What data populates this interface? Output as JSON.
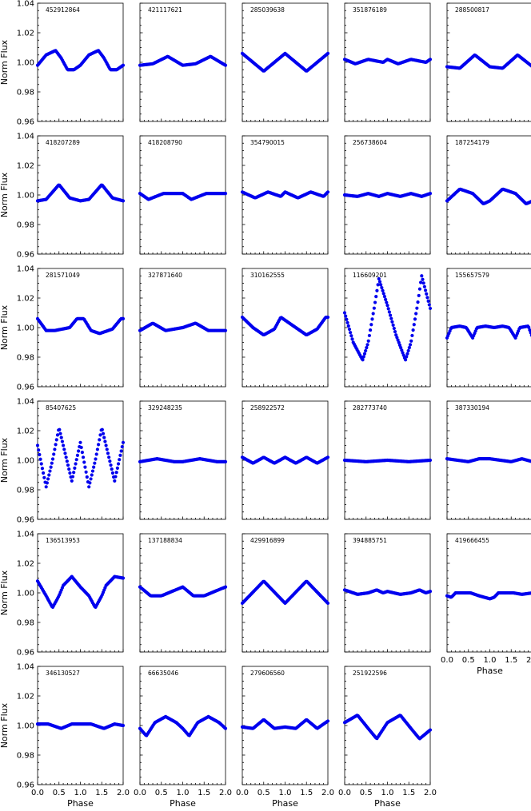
{
  "chart_data": {
    "type": "scatter",
    "xlabel": "Phase",
    "ylabel": "Norm Flux",
    "xlim": [
      0.0,
      2.0
    ],
    "ylim": [
      0.96,
      1.04
    ],
    "x_ticks": [
      "0.0",
      "0.5",
      "1.0",
      "1.5",
      "2.0"
    ],
    "y_ticks": [
      "0.96",
      "0.98",
      "1.00",
      "1.02",
      "1.04"
    ],
    "grid": false,
    "marker_color": "#0000ee",
    "panels": [
      {
        "id": "452912864",
        "curve": [
          [
            0.0,
            0.998
          ],
          [
            0.2,
            1.005
          ],
          [
            0.42,
            1.008
          ],
          [
            0.55,
            1.003
          ],
          [
            0.7,
            0.995
          ],
          [
            0.85,
            0.995
          ],
          [
            1.0,
            0.998
          ],
          [
            1.2,
            1.005
          ],
          [
            1.42,
            1.008
          ],
          [
            1.55,
            1.003
          ],
          [
            1.7,
            0.995
          ],
          [
            1.85,
            0.995
          ],
          [
            2.0,
            0.998
          ]
        ]
      },
      {
        "id": "421117621",
        "curve": [
          [
            0.0,
            0.998
          ],
          [
            0.3,
            0.999
          ],
          [
            0.65,
            1.004
          ],
          [
            1.0,
            0.998
          ],
          [
            1.3,
            0.999
          ],
          [
            1.65,
            1.004
          ],
          [
            2.0,
            0.998
          ]
        ]
      },
      {
        "id": "285039638",
        "curve": [
          [
            0.0,
            1.006
          ],
          [
            0.5,
            0.994
          ],
          [
            1.0,
            1.006
          ],
          [
            1.5,
            0.994
          ],
          [
            2.0,
            1.006
          ]
        ]
      },
      {
        "id": "351876189",
        "curve": [
          [
            0.0,
            1.002
          ],
          [
            0.25,
            0.999
          ],
          [
            0.55,
            1.002
          ],
          [
            0.9,
            1.0
          ],
          [
            1.0,
            1.002
          ],
          [
            1.25,
            0.999
          ],
          [
            1.55,
            1.002
          ],
          [
            1.9,
            1.0
          ],
          [
            2.0,
            1.002
          ]
        ]
      },
      {
        "id": "288500817",
        "curve": [
          [
            0.0,
            0.997
          ],
          [
            0.3,
            0.996
          ],
          [
            0.65,
            1.005
          ],
          [
            1.0,
            0.997
          ],
          [
            1.3,
            0.996
          ],
          [
            1.65,
            1.005
          ],
          [
            2.0,
            0.997
          ]
        ]
      },
      {
        "id": "418207289",
        "curve": [
          [
            0.0,
            0.996
          ],
          [
            0.2,
            0.997
          ],
          [
            0.5,
            1.007
          ],
          [
            0.75,
            0.998
          ],
          [
            1.0,
            0.996
          ],
          [
            1.2,
            0.997
          ],
          [
            1.5,
            1.007
          ],
          [
            1.75,
            0.998
          ],
          [
            2.0,
            0.996
          ]
        ]
      },
      {
        "id": "418208790",
        "curve": [
          [
            0.0,
            1.001
          ],
          [
            0.2,
            0.997
          ],
          [
            0.55,
            1.001
          ],
          [
            1.0,
            1.001
          ],
          [
            1.2,
            0.997
          ],
          [
            1.55,
            1.001
          ],
          [
            2.0,
            1.001
          ]
        ]
      },
      {
        "id": "354790015",
        "curve": [
          [
            0.0,
            1.002
          ],
          [
            0.3,
            0.998
          ],
          [
            0.6,
            1.002
          ],
          [
            0.9,
            0.999
          ],
          [
            1.0,
            1.002
          ],
          [
            1.3,
            0.998
          ],
          [
            1.6,
            1.002
          ],
          [
            1.9,
            0.999
          ],
          [
            2.0,
            1.002
          ]
        ]
      },
      {
        "id": "256738604",
        "curve": [
          [
            0.0,
            1.0
          ],
          [
            0.3,
            0.999
          ],
          [
            0.55,
            1.001
          ],
          [
            0.8,
            0.999
          ],
          [
            1.0,
            1.001
          ],
          [
            1.3,
            0.999
          ],
          [
            1.55,
            1.001
          ],
          [
            1.8,
            0.999
          ],
          [
            2.0,
            1.001
          ]
        ]
      },
      {
        "id": "187254179",
        "curve": [
          [
            0.0,
            0.996
          ],
          [
            0.3,
            1.004
          ],
          [
            0.6,
            1.001
          ],
          [
            0.85,
            0.994
          ],
          [
            1.0,
            0.996
          ],
          [
            1.3,
            1.004
          ],
          [
            1.6,
            1.001
          ],
          [
            1.85,
            0.994
          ],
          [
            2.0,
            0.996
          ]
        ]
      },
      {
        "id": "281571049",
        "curve": [
          [
            0.0,
            1.006
          ],
          [
            0.2,
            0.998
          ],
          [
            0.4,
            0.998
          ],
          [
            0.75,
            1.0
          ],
          [
            0.92,
            1.006
          ],
          [
            1.08,
            1.006
          ],
          [
            1.25,
            0.998
          ],
          [
            1.45,
            0.996
          ],
          [
            1.75,
            0.999
          ],
          [
            1.95,
            1.006
          ],
          [
            2.0,
            1.006
          ]
        ]
      },
      {
        "id": "327871640",
        "curve": [
          [
            0.0,
            0.998
          ],
          [
            0.3,
            1.003
          ],
          [
            0.6,
            0.998
          ],
          [
            1.0,
            1.0
          ],
          [
            1.3,
            1.003
          ],
          [
            1.6,
            0.998
          ],
          [
            2.0,
            0.998
          ]
        ]
      },
      {
        "id": "310162555",
        "curve": [
          [
            0.0,
            1.007
          ],
          [
            0.25,
            1.0
          ],
          [
            0.5,
            0.995
          ],
          [
            0.75,
            0.999
          ],
          [
            0.9,
            1.007
          ],
          [
            1.25,
            1.0
          ],
          [
            1.5,
            0.995
          ],
          [
            1.75,
            0.999
          ],
          [
            1.95,
            1.007
          ],
          [
            2.0,
            1.007
          ]
        ]
      },
      {
        "id": "116609201",
        "curve": [
          [
            0.0,
            1.01
          ],
          [
            0.2,
            0.99
          ],
          [
            0.42,
            0.978
          ],
          [
            0.55,
            0.99
          ],
          [
            0.7,
            1.015
          ],
          [
            0.8,
            1.033
          ],
          [
            1.0,
            1.015
          ],
          [
            1.2,
            0.995
          ],
          [
            1.42,
            0.978
          ],
          [
            1.55,
            0.99
          ],
          [
            1.7,
            1.015
          ],
          [
            1.8,
            1.035
          ],
          [
            2.0,
            1.013
          ]
        ]
      },
      {
        "id": "155657579",
        "curve": [
          [
            0.0,
            0.993
          ],
          [
            0.1,
            1.0
          ],
          [
            0.3,
            1.001
          ],
          [
            0.45,
            1.0
          ],
          [
            0.6,
            0.993
          ],
          [
            0.7,
            1.0
          ],
          [
            0.9,
            1.001
          ],
          [
            1.1,
            1.0
          ],
          [
            1.3,
            1.001
          ],
          [
            1.45,
            1.0
          ],
          [
            1.6,
            0.993
          ],
          [
            1.7,
            1.0
          ],
          [
            1.9,
            1.001
          ],
          [
            2.0,
            0.993
          ]
        ]
      },
      {
        "id": "85407625",
        "curve": [
          [
            0.0,
            1.01
          ],
          [
            0.2,
            0.982
          ],
          [
            0.35,
            1.0
          ],
          [
            0.5,
            1.022
          ],
          [
            0.7,
            0.998
          ],
          [
            0.8,
            0.986
          ],
          [
            1.0,
            1.012
          ],
          [
            1.2,
            0.982
          ],
          [
            1.35,
            1.0
          ],
          [
            1.5,
            1.022
          ],
          [
            1.7,
            0.998
          ],
          [
            1.8,
            0.986
          ],
          [
            2.0,
            1.012
          ]
        ]
      },
      {
        "id": "329248235",
        "curve": [
          [
            0.0,
            0.999
          ],
          [
            0.4,
            1.001
          ],
          [
            0.8,
            0.999
          ],
          [
            1.0,
            0.999
          ],
          [
            1.4,
            1.001
          ],
          [
            1.8,
            0.999
          ],
          [
            2.0,
            0.999
          ]
        ]
      },
      {
        "id": "258922572",
        "curve": [
          [
            0.0,
            1.002
          ],
          [
            0.25,
            0.998
          ],
          [
            0.5,
            1.002
          ],
          [
            0.75,
            0.998
          ],
          [
            1.0,
            1.002
          ],
          [
            1.25,
            0.998
          ],
          [
            1.5,
            1.002
          ],
          [
            1.75,
            0.998
          ],
          [
            2.0,
            1.002
          ]
        ]
      },
      {
        "id": "282773740",
        "curve": [
          [
            0.0,
            1.0
          ],
          [
            0.5,
            0.999
          ],
          [
            1.0,
            1.0
          ],
          [
            1.5,
            0.999
          ],
          [
            2.0,
            1.0
          ]
        ]
      },
      {
        "id": "387330194",
        "curve": [
          [
            0.0,
            1.001
          ],
          [
            0.5,
            0.999
          ],
          [
            0.75,
            1.001
          ],
          [
            1.0,
            1.001
          ],
          [
            1.5,
            0.999
          ],
          [
            1.75,
            1.001
          ],
          [
            2.0,
            0.999
          ]
        ]
      },
      {
        "id": "136513953",
        "curve": [
          [
            0.0,
            1.008
          ],
          [
            0.2,
            0.998
          ],
          [
            0.35,
            0.99
          ],
          [
            0.5,
            0.998
          ],
          [
            0.6,
            1.005
          ],
          [
            0.8,
            1.011
          ],
          [
            1.0,
            1.004
          ],
          [
            1.2,
            0.998
          ],
          [
            1.35,
            0.99
          ],
          [
            1.5,
            0.998
          ],
          [
            1.6,
            1.005
          ],
          [
            1.8,
            1.011
          ],
          [
            2.0,
            1.01
          ]
        ]
      },
      {
        "id": "137188834",
        "curve": [
          [
            0.0,
            1.004
          ],
          [
            0.25,
            0.998
          ],
          [
            0.5,
            0.998
          ],
          [
            0.75,
            1.001
          ],
          [
            1.0,
            1.004
          ],
          [
            1.25,
            0.998
          ],
          [
            1.5,
            0.998
          ],
          [
            1.75,
            1.001
          ],
          [
            2.0,
            1.004
          ]
        ]
      },
      {
        "id": "429916899",
        "curve": [
          [
            0.0,
            0.993
          ],
          [
            0.5,
            1.008
          ],
          [
            1.0,
            0.993
          ],
          [
            1.5,
            1.008
          ],
          [
            2.0,
            0.993
          ]
        ]
      },
      {
        "id": "394885751",
        "curve": [
          [
            0.0,
            1.002
          ],
          [
            0.3,
            0.999
          ],
          [
            0.55,
            1.0
          ],
          [
            0.75,
            1.002
          ],
          [
            0.9,
            1.0
          ],
          [
            1.0,
            1.001
          ],
          [
            1.3,
            0.999
          ],
          [
            1.55,
            1.0
          ],
          [
            1.75,
            1.002
          ],
          [
            1.9,
            1.0
          ],
          [
            2.0,
            1.001
          ]
        ]
      },
      {
        "id": "419666455",
        "curve": [
          [
            0.0,
            0.998
          ],
          [
            0.1,
            0.997
          ],
          [
            0.2,
            1.0
          ],
          [
            0.55,
            1.0
          ],
          [
            0.75,
            0.998
          ],
          [
            1.0,
            0.996
          ],
          [
            1.1,
            0.997
          ],
          [
            1.2,
            1.0
          ],
          [
            1.55,
            1.0
          ],
          [
            1.75,
            0.999
          ],
          [
            2.0,
            1.0
          ]
        ]
      },
      {
        "id": "346130527",
        "curve": [
          [
            0.0,
            1.001
          ],
          [
            0.25,
            1.001
          ],
          [
            0.55,
            0.998
          ],
          [
            0.8,
            1.001
          ],
          [
            1.0,
            1.001
          ],
          [
            1.25,
            1.001
          ],
          [
            1.55,
            0.998
          ],
          [
            1.8,
            1.001
          ],
          [
            2.0,
            1.0
          ]
        ]
      },
      {
        "id": "66635046",
        "curve": [
          [
            0.0,
            0.998
          ],
          [
            0.15,
            0.993
          ],
          [
            0.35,
            1.002
          ],
          [
            0.6,
            1.006
          ],
          [
            0.85,
            1.002
          ],
          [
            1.0,
            0.998
          ],
          [
            1.15,
            0.993
          ],
          [
            1.35,
            1.002
          ],
          [
            1.6,
            1.006
          ],
          [
            1.85,
            1.002
          ],
          [
            2.0,
            0.998
          ]
        ]
      },
      {
        "id": "279606560",
        "curve": [
          [
            0.0,
            0.999
          ],
          [
            0.25,
            0.998
          ],
          [
            0.5,
            1.004
          ],
          [
            0.75,
            0.998
          ],
          [
            1.0,
            0.999
          ],
          [
            1.25,
            0.998
          ],
          [
            1.5,
            1.004
          ],
          [
            1.75,
            0.998
          ],
          [
            2.0,
            1.003
          ]
        ]
      },
      {
        "id": "251922596",
        "curve": [
          [
            0.0,
            1.002
          ],
          [
            0.3,
            1.007
          ],
          [
            0.55,
            0.998
          ],
          [
            0.75,
            0.991
          ],
          [
            1.0,
            1.002
          ],
          [
            1.3,
            1.007
          ],
          [
            1.55,
            0.998
          ],
          [
            1.75,
            0.991
          ],
          [
            2.0,
            0.997
          ]
        ]
      }
    ]
  }
}
